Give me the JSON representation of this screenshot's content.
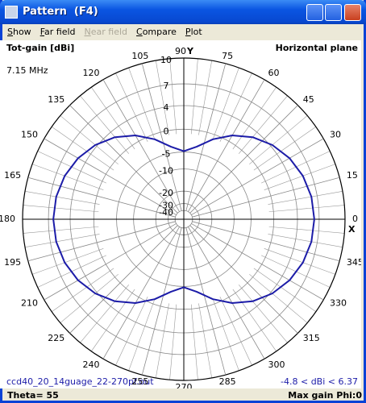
{
  "window": {
    "title": "Pattern  (F4)",
    "menu": [
      "Show",
      "Far field",
      "Near field",
      "Compare",
      "Plot"
    ],
    "status": {
      "left": "Theta= 55",
      "right": "Max gain Phi:0"
    }
  },
  "chart_data": {
    "type": "polar",
    "title": "Tot-gain [dBi]",
    "subtitle": "Horizontal plane",
    "frequency": "7.15 MHz",
    "file": "ccd40_20_14guage_22-270pf.out",
    "range_note": "-4.8 < dBi < 6.37",
    "x_axis_label": "X",
    "y_axis_label": "Y",
    "scale": "arrl-log",
    "rmax": 10,
    "rticks": [
      10,
      7,
      4,
      0,
      -5,
      -10,
      -20,
      -30,
      -40
    ],
    "angle_ticks": [
      0,
      15,
      30,
      45,
      60,
      75,
      90,
      105,
      120,
      135,
      150,
      165,
      180,
      195,
      210,
      225,
      240,
      255,
      270,
      285,
      300,
      315,
      330,
      345
    ],
    "x": [
      0,
      10,
      20,
      30,
      40,
      50,
      60,
      70,
      80,
      90,
      100,
      110,
      120,
      130,
      140,
      150,
      160,
      170,
      180,
      190,
      200,
      210,
      220,
      230,
      240,
      250,
      260,
      270,
      280,
      290,
      300,
      310,
      320,
      330,
      340,
      350
    ],
    "series": [
      {
        "color": "#1c1ca8",
        "values": [
          6.37,
          6.25,
          5.87,
          5.23,
          4.28,
          2.98,
          1.25,
          -0.97,
          -3.45,
          -4.8,
          -3.45,
          -0.97,
          1.25,
          2.98,
          4.28,
          5.23,
          5.87,
          6.25,
          6.37,
          6.25,
          5.87,
          5.23,
          4.28,
          2.98,
          1.25,
          -0.97,
          -3.45,
          -4.8,
          -3.45,
          -0.97,
          1.25,
          2.98,
          4.28,
          5.23,
          5.87,
          6.25
        ]
      }
    ]
  }
}
